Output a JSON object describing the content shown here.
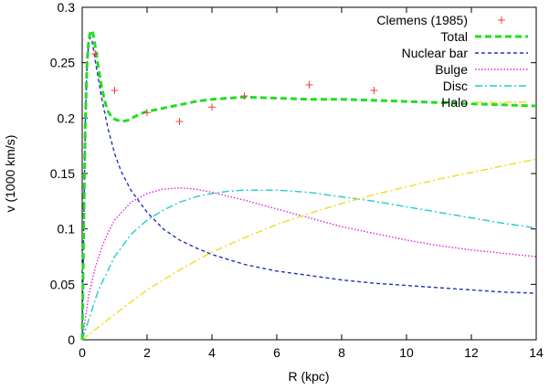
{
  "chart_data": {
    "type": "line",
    "xlabel": "R (kpc)",
    "ylabel": "v  (1000 km/s)",
    "xlim": [
      0,
      14
    ],
    "ylim": [
      0,
      0.3
    ],
    "x_ticks": [
      0,
      2,
      4,
      6,
      8,
      10,
      12,
      14
    ],
    "y_ticks": [
      0,
      0.05,
      0.1,
      0.15,
      0.2,
      0.25,
      0.3
    ],
    "x_tick_labels": [
      "0",
      "2",
      "4",
      "6",
      "8",
      "10",
      "12",
      "14"
    ],
    "y_tick_labels": [
      "0",
      "0.05",
      "0.1",
      "0.15",
      "0.2",
      "0.25",
      "0.3"
    ],
    "legend_position": "top-right",
    "grid": false,
    "scatter": {
      "name": "Clemens (1985)",
      "color": "#e8413c",
      "marker": "plus",
      "x": [
        0.4,
        1.0,
        2.0,
        3.0,
        4.0,
        5.0,
        7.0,
        9.0
      ],
      "y": [
        0.258,
        0.225,
        0.205,
        0.197,
        0.21,
        0.22,
        0.23,
        0.225
      ]
    },
    "series": [
      {
        "name": "Total",
        "color": "#22dd22",
        "style": "dashed-thick",
        "x": [
          0,
          0.05,
          0.1,
          0.15,
          0.2,
          0.25,
          0.3,
          0.35,
          0.4,
          0.5,
          0.6,
          0.7,
          0.8,
          0.9,
          1.0,
          1.2,
          1.4,
          1.6,
          1.8,
          2.0,
          2.5,
          3.0,
          3.5,
          4.0,
          5.0,
          6.0,
          7.0,
          8.0,
          9.0,
          10.0,
          11.0,
          12.0,
          13.0,
          14.0
        ],
        "y": [
          0,
          0.11,
          0.2,
          0.25,
          0.27,
          0.278,
          0.279,
          0.274,
          0.265,
          0.245,
          0.228,
          0.215,
          0.206,
          0.201,
          0.199,
          0.197,
          0.198,
          0.201,
          0.204,
          0.206,
          0.209,
          0.212,
          0.215,
          0.217,
          0.219,
          0.218,
          0.217,
          0.217,
          0.216,
          0.215,
          0.214,
          0.213,
          0.212,
          0.211
        ]
      },
      {
        "name": "Nuclear bar",
        "color": "#2233bb",
        "style": "dashed",
        "x": [
          0,
          0.05,
          0.1,
          0.15,
          0.2,
          0.25,
          0.3,
          0.35,
          0.4,
          0.5,
          0.6,
          0.8,
          1.0,
          1.2,
          1.5,
          2.0,
          2.5,
          3.0,
          3.5,
          4.0,
          5.0,
          6.0,
          7.0,
          8.0,
          9.0,
          10.0,
          11.0,
          12.0,
          13.0,
          14.0
        ],
        "y": [
          0,
          0.11,
          0.2,
          0.25,
          0.268,
          0.273,
          0.27,
          0.262,
          0.252,
          0.235,
          0.218,
          0.19,
          0.168,
          0.152,
          0.135,
          0.115,
          0.1,
          0.09,
          0.083,
          0.077,
          0.068,
          0.062,
          0.058,
          0.054,
          0.051,
          0.049,
          0.047,
          0.045,
          0.043,
          0.042
        ]
      },
      {
        "name": "Bulge",
        "color": "#dd22dd",
        "style": "dotted",
        "x": [
          0,
          0.2,
          0.4,
          0.6,
          0.8,
          1.0,
          1.5,
          2.0,
          2.5,
          3.0,
          3.5,
          4.0,
          5.0,
          6.0,
          7.0,
          8.0,
          9.0,
          10.0,
          11.0,
          12.0,
          13.0,
          14.0
        ],
        "y": [
          0,
          0.04,
          0.065,
          0.083,
          0.097,
          0.108,
          0.124,
          0.132,
          0.136,
          0.137,
          0.136,
          0.133,
          0.126,
          0.118,
          0.11,
          0.102,
          0.096,
          0.09,
          0.085,
          0.081,
          0.078,
          0.075
        ]
      },
      {
        "name": "Disc",
        "color": "#22cccc",
        "style": "dash-dot",
        "x": [
          0,
          0.5,
          1.0,
          1.5,
          2.0,
          2.5,
          3.0,
          3.5,
          4.0,
          4.5,
          5.0,
          5.5,
          6.0,
          7.0,
          8.0,
          9.0,
          10.0,
          11.0,
          12.0,
          13.0,
          14.0
        ],
        "y": [
          0,
          0.045,
          0.075,
          0.095,
          0.108,
          0.117,
          0.124,
          0.129,
          0.132,
          0.134,
          0.135,
          0.135,
          0.135,
          0.133,
          0.129,
          0.125,
          0.12,
          0.115,
          0.11,
          0.105,
          0.101
        ]
      },
      {
        "name": "Halo",
        "color": "#eedd22",
        "style": "dash-dot",
        "x": [
          0,
          1,
          2,
          3,
          4,
          5,
          6,
          7,
          8,
          9,
          10,
          11,
          12,
          13,
          14
        ],
        "y": [
          0,
          0.023,
          0.045,
          0.063,
          0.079,
          0.092,
          0.104,
          0.114,
          0.123,
          0.131,
          0.138,
          0.145,
          0.151,
          0.157,
          0.163
        ]
      }
    ]
  }
}
